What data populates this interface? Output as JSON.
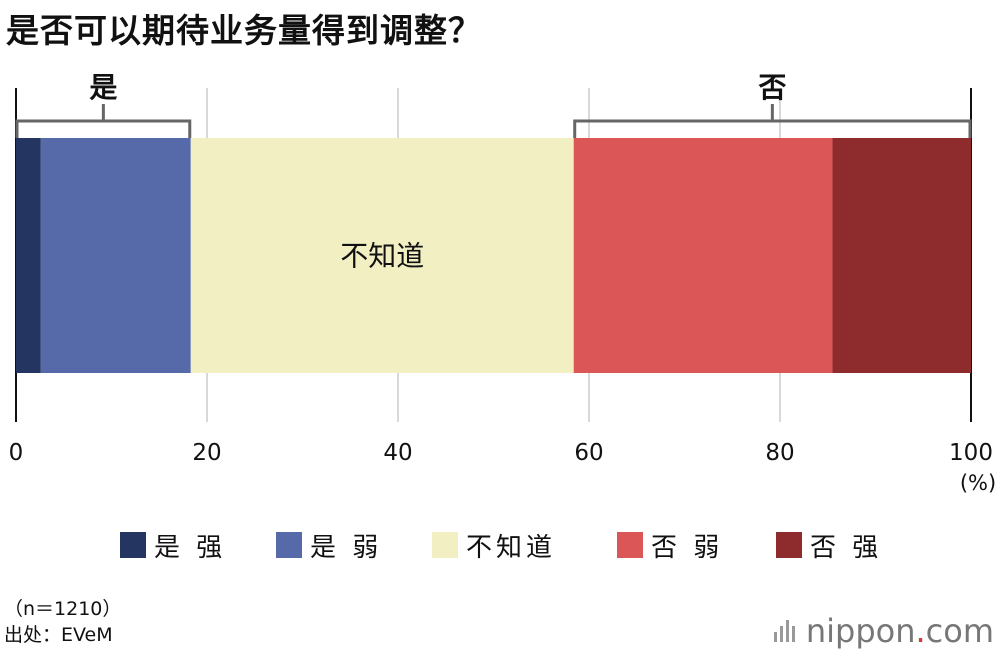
{
  "chart_data": {
    "type": "bar",
    "orientation": "horizontal-stacked",
    "title": "是否可以期待业务量得到调整？",
    "unit_label": "(%)",
    "xlim": [
      0,
      100
    ],
    "x_ticks": [
      0,
      20,
      40,
      60,
      80,
      100
    ],
    "grid": true,
    "series": [
      {
        "name": "是 强",
        "value": 2.6,
        "color": "#253561"
      },
      {
        "name": "是 弱",
        "value": 15.7,
        "color": "#5669a8"
      },
      {
        "name": "不知道",
        "value": 40.1,
        "color": "#f2efc3"
      },
      {
        "name": "否 弱",
        "value": 27.1,
        "color": "#db5656"
      },
      {
        "name": "否 强",
        "value": 14.5,
        "color": "#8e2b2d"
      }
    ],
    "bar_inner_label": "不知道",
    "brackets": [
      {
        "label": "是",
        "from": 0,
        "to": 18.3
      },
      {
        "label": "否",
        "from": 58.4,
        "to": 100
      }
    ],
    "legend_position": "bottom"
  },
  "footnote": {
    "sample": "（n＝1210）",
    "source": "出处：EVeM"
  },
  "logo": {
    "brand": "nippon",
    "dot": ".",
    "tld": "com"
  }
}
